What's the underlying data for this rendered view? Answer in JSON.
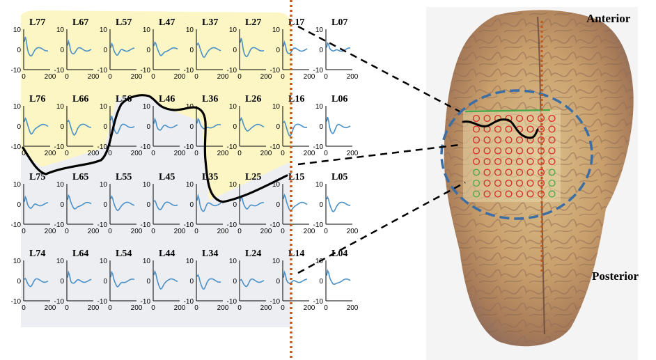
{
  "region_labels": {
    "anterior": "Anterior",
    "posterior": "Posterior"
  },
  "grid": {
    "y_ticks": [
      "10",
      "0",
      "-10"
    ],
    "x_ticks": [
      "0",
      "200"
    ],
    "rows": [
      [
        "L77",
        "L67",
        "L57",
        "L47",
        "L37",
        "L27",
        "L17",
        "L07"
      ],
      [
        "L76",
        "L66",
        "L56",
        "L46",
        "L36",
        "L26",
        "L16",
        "L06"
      ],
      [
        "L75",
        "L65",
        "L55",
        "L45",
        "L35",
        "L25",
        "L15",
        "L05"
      ],
      [
        "L74",
        "L64",
        "L54",
        "L44",
        "L34",
        "L24",
        "L14",
        "L04"
      ]
    ]
  },
  "colors": {
    "trace": "#4a90c8",
    "upper_region": "#fbf6c4",
    "lower_region": "#eceef2",
    "midline": "#c0581a",
    "ellipse": "#3a6ea5",
    "electrode_red": "#d42a2a",
    "electrode_green": "#4aa84a",
    "boundary": "#000000"
  }
}
